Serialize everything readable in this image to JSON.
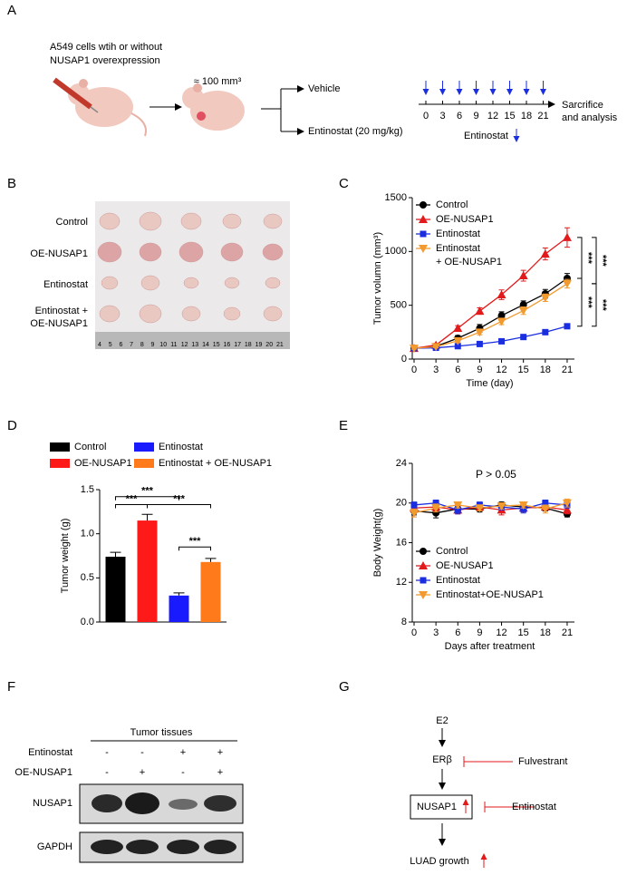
{
  "panel_labels": [
    "A",
    "B",
    "C",
    "D",
    "E",
    "F",
    "G"
  ],
  "panel_a": {
    "cells_text": [
      "A549 cells wtih or without",
      "NUSAP1 overexpression"
    ],
    "volume": "≈ 100 mm³",
    "vehicle": "Vehicle",
    "treatment": "Entinostat (20 mg/kg)",
    "days": [
      0,
      3,
      6,
      9,
      12,
      15,
      18,
      21
    ],
    "endpoint": [
      "Sarcrifice",
      "and analysis"
    ],
    "drug": "Entinostat"
  },
  "panel_b": {
    "rows": [
      [
        "Control"
      ],
      [
        "OE-NUSAP1"
      ],
      [
        "Entinostat"
      ],
      [
        "Entinostat +",
        "OE-NUSAP1"
      ]
    ],
    "ruler": [
      4,
      5,
      6,
      7,
      8,
      9,
      10,
      11,
      12,
      13,
      14,
      15,
      16,
      17,
      18,
      19,
      20,
      21
    ]
  },
  "chart_data": [
    {
      "type": "line",
      "x_label": "Time (day)",
      "y_label": "Tumor volumn (mm³)",
      "x": [
        0,
        3,
        6,
        9,
        12,
        15,
        18,
        21
      ],
      "xlim": [
        0,
        22
      ],
      "xticks": [
        0,
        3,
        6,
        9,
        12,
        15,
        18,
        21
      ],
      "ylim": [
        0,
        1500
      ],
      "yticks": [
        0,
        500,
        1000,
        1500
      ],
      "legend": "upper left",
      "series": [
        {
          "name": "Control",
          "color": "#000000",
          "marker": "circle",
          "values": [
            100,
            118,
            194,
            286,
            404,
            505,
            607,
            750
          ],
          "errors": [
            10,
            15,
            25,
            35,
            35,
            35,
            40,
            45
          ]
        },
        {
          "name": "OE-NUSAP1",
          "color": "#e31a1c",
          "marker": "triangle-up",
          "values": [
            100,
            130,
            286,
            446,
            598,
            775,
            977,
            1130
          ],
          "errors": [
            10,
            15,
            25,
            30,
            45,
            50,
            55,
            90
          ]
        },
        {
          "name": "Entinostat",
          "color": "#1a2ee0",
          "marker": "square",
          "values": [
            100,
            105,
            120,
            140,
            165,
            205,
            250,
            305
          ],
          "errors": [
            5,
            8,
            10,
            10,
            12,
            15,
            15,
            20
          ]
        },
        {
          "name": "Entinostat + OE-NUSAP1",
          "color": "#f39a2e",
          "marker": "triangle-down",
          "values": [
            100,
            115,
            170,
            250,
            350,
            450,
            570,
            700
          ],
          "errors": [
            8,
            10,
            15,
            25,
            30,
            35,
            35,
            40
          ]
        }
      ],
      "annotations": [
        "***",
        "***",
        "***",
        "***"
      ]
    },
    {
      "type": "bar",
      "y_label": "Tumor weight (g)",
      "categories": [
        "Control",
        "OE-NUSAP1",
        "Entinostat",
        "Entinostat + OE-NUSAP1"
      ],
      "values": [
        0.74,
        1.15,
        0.3,
        0.68
      ],
      "errors": [
        0.05,
        0.07,
        0.03,
        0.04
      ],
      "colors": [
        "#000000",
        "#ff1a1a",
        "#1a1aff",
        "#ff7a1a"
      ],
      "ylim": [
        0,
        1.5
      ],
      "yticks": [
        {
          "value": 0,
          "label": "0.0"
        },
        0.5,
        {
          "value": 1,
          "label": "1.0"
        },
        1.5
      ],
      "legend": "top",
      "annotations": [
        "***",
        "***",
        "***",
        "***"
      ]
    },
    {
      "type": "line",
      "x_label": "Days after treatment",
      "y_label": "Body Weight(g)",
      "x": [
        0,
        3,
        6,
        9,
        12,
        15,
        18,
        21
      ],
      "xlim": [
        0,
        22
      ],
      "xticks": [
        0,
        3,
        6,
        9,
        12,
        15,
        18,
        21
      ],
      "ylim": [
        8,
        24
      ],
      "yticks": [
        8,
        12,
        16,
        20,
        24
      ],
      "legend": "lower left",
      "series": [
        {
          "name": "Control",
          "color": "#000000",
          "marker": "circle",
          "values": [
            19.2,
            19.0,
            19.4,
            19.4,
            19.8,
            19.6,
            19.5,
            18.9
          ],
          "errors": [
            0.4,
            0.5,
            0.4,
            0.3,
            0.3,
            0.4,
            0.3,
            0.3
          ]
        },
        {
          "name": "OE-NUSAP1",
          "color": "#e31a1c",
          "marker": "triangle-up",
          "values": [
            19.5,
            19.6,
            19.3,
            19.6,
            19.3,
            19.5,
            19.6,
            19.3
          ],
          "errors": [
            0.4,
            0.4,
            0.4,
            0.4,
            0.5,
            0.4,
            0.3,
            0.4
          ]
        },
        {
          "name": "Entinostat",
          "color": "#1a2ee0",
          "marker": "square",
          "values": [
            19.8,
            20.0,
            19.3,
            19.8,
            19.6,
            19.4,
            20.0,
            19.8
          ],
          "errors": [
            0.3,
            0.3,
            0.4,
            0.3,
            0.3,
            0.4,
            0.3,
            0.3
          ]
        },
        {
          "name": "Entinostat+OE-NUSAP1",
          "color": "#f39a2e",
          "marker": "triangle-down",
          "values": [
            19.0,
            19.5,
            19.8,
            19.5,
            19.7,
            19.8,
            19.4,
            20.0
          ],
          "errors": [
            0.4,
            0.4,
            0.3,
            0.3,
            0.3,
            0.3,
            0.4,
            0.4
          ]
        }
      ],
      "annotations": [
        "P > 0.05"
      ]
    }
  ],
  "panel_f": {
    "header": "Tumor tissues",
    "conditions": [
      {
        "name": "Entinostat",
        "signs": [
          "-",
          "-",
          "+",
          "+"
        ]
      },
      {
        "name": "OE-NUSAP1",
        "signs": [
          "-",
          "+",
          "-",
          "+"
        ]
      }
    ],
    "blots": [
      "NUSAP1",
      "GAPDH"
    ]
  },
  "panel_g": {
    "nodes": [
      "E2",
      "ERβ",
      "NUSAP1",
      "LUAD growth"
    ],
    "inhibitors": [
      "Fulvestrant",
      "Entinostat"
    ]
  }
}
